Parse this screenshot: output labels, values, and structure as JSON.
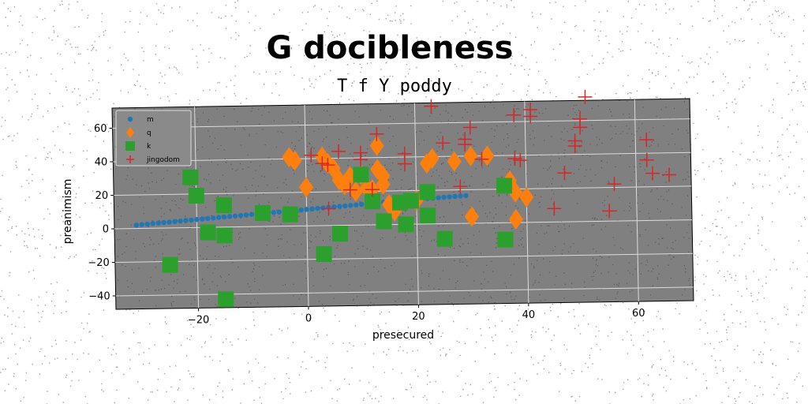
{
  "chart_data": {
    "type": "scatter",
    "title": "G docibleness",
    "subtitle": "T f Y poddy",
    "xlabel": "presecured",
    "ylabel": "preanimism",
    "xlim": [
      -35,
      70
    ],
    "ylim": [
      -48,
      72
    ],
    "xticks": [
      -20,
      0,
      20,
      40,
      60
    ],
    "yticks": [
      -40,
      -20,
      0,
      20,
      40,
      60
    ],
    "xtick_labels": [
      "−20",
      "0",
      "20",
      "40",
      "60"
    ],
    "ytick_labels": [
      "−40",
      "−20",
      "0",
      "20",
      "40",
      "60"
    ],
    "grid": true,
    "legend_position": "top-left",
    "background": "#808080",
    "series": [
      {
        "name": "m",
        "marker": "circle",
        "color": "#1f77b4",
        "points": [
          [
            -31,
            2
          ],
          [
            -30,
            2.3
          ],
          [
            -29,
            2.5
          ],
          [
            -28,
            2.8
          ],
          [
            -27,
            3
          ],
          [
            -26,
            3.3
          ],
          [
            -25,
            3.5
          ],
          [
            -24,
            3.8
          ],
          [
            -23,
            4
          ],
          [
            -22,
            4.3
          ],
          [
            -21,
            4.5
          ],
          [
            -20,
            4.8
          ],
          [
            -19,
            5
          ],
          [
            -18,
            5.3
          ],
          [
            -17,
            5.5
          ],
          [
            -16,
            5.8
          ],
          [
            -15,
            6
          ],
          [
            -14,
            6.3
          ],
          [
            -13,
            6.5
          ],
          [
            -12,
            6.8
          ],
          [
            -11,
            7
          ],
          [
            -10,
            7.3
          ],
          [
            -9,
            7.5
          ],
          [
            -8,
            7.8
          ],
          [
            -7,
            8
          ],
          [
            -6,
            8.3
          ],
          [
            -5,
            8.5
          ],
          [
            -4,
            8.8
          ],
          [
            -3,
            9
          ],
          [
            -2,
            9.3
          ],
          [
            -1,
            9.5
          ],
          [
            0,
            9.8
          ],
          [
            1,
            10
          ],
          [
            2,
            10.3
          ],
          [
            3,
            10.5
          ],
          [
            4,
            10.8
          ],
          [
            5,
            11
          ],
          [
            6,
            11.3
          ],
          [
            7,
            11.5
          ],
          [
            8,
            11.8
          ],
          [
            9,
            12
          ],
          [
            10,
            12.3
          ],
          [
            11,
            12.5
          ],
          [
            12,
            12.8
          ],
          [
            13,
            13
          ],
          [
            14,
            13.3
          ],
          [
            15,
            13.5
          ],
          [
            16,
            13.8
          ],
          [
            17,
            14
          ],
          [
            18,
            14.2
          ],
          [
            19,
            14.5
          ],
          [
            20,
            14.7
          ],
          [
            21,
            14.9
          ],
          [
            22,
            15.1
          ],
          [
            23,
            15.3
          ],
          [
            24,
            15.5
          ],
          [
            25,
            15.7
          ],
          [
            26,
            15.9
          ],
          [
            27,
            16.1
          ],
          [
            28,
            16.3
          ],
          [
            29,
            16.5
          ]
        ]
      },
      {
        "name": "q",
        "marker": "diamond",
        "color": "#ff7f0e",
        "points": [
          [
            -3,
            41
          ],
          [
            -2,
            39
          ],
          [
            0,
            23
          ],
          [
            3,
            41
          ],
          [
            4,
            37
          ],
          [
            5,
            34
          ],
          [
            6,
            27
          ],
          [
            7,
            24
          ],
          [
            8,
            29
          ],
          [
            9,
            20
          ],
          [
            10,
            30
          ],
          [
            11,
            22
          ],
          [
            12,
            21
          ],
          [
            13,
            47
          ],
          [
            13,
            33
          ],
          [
            14,
            29
          ],
          [
            14,
            24
          ],
          [
            15,
            12
          ],
          [
            16,
            8
          ],
          [
            20,
            14
          ],
          [
            22,
            36
          ],
          [
            23,
            39
          ],
          [
            27,
            37
          ],
          [
            30,
            4
          ],
          [
            30,
            40
          ],
          [
            33,
            40
          ],
          [
            37,
            25
          ],
          [
            38,
            18
          ],
          [
            38,
            2
          ],
          [
            40,
            15
          ]
        ]
      },
      {
        "name": "k",
        "marker": "square",
        "color": "#2ca02c",
        "points": [
          [
            -25,
            -22
          ],
          [
            -21,
            30
          ],
          [
            -20,
            19
          ],
          [
            -18,
            -3
          ],
          [
            -15,
            -5
          ],
          [
            -15,
            13
          ],
          [
            -15,
            -43
          ],
          [
            -8,
            8
          ],
          [
            -3,
            7
          ],
          [
            3,
            -17
          ],
          [
            6,
            -5
          ],
          [
            10,
            30
          ],
          [
            12,
            14
          ],
          [
            14,
            2
          ],
          [
            17,
            13
          ],
          [
            18,
            0
          ],
          [
            19,
            14
          ],
          [
            22,
            19
          ],
          [
            22,
            5
          ],
          [
            25,
            -9
          ],
          [
            36,
            22
          ],
          [
            36,
            -10
          ]
        ]
      },
      {
        "name": "jingodom",
        "marker": "plus",
        "color": "#d62728",
        "points": [
          [
            1,
            42
          ],
          [
            3,
            37
          ],
          [
            4,
            36
          ],
          [
            4,
            10
          ],
          [
            6,
            44
          ],
          [
            8,
            21
          ],
          [
            10,
            43
          ],
          [
            10,
            39
          ],
          [
            12,
            21
          ],
          [
            13,
            54
          ],
          [
            18,
            42
          ],
          [
            18,
            36
          ],
          [
            23,
            70
          ],
          [
            25,
            48
          ],
          [
            28,
            22
          ],
          [
            29,
            50
          ],
          [
            29,
            47
          ],
          [
            30,
            57
          ],
          [
            32,
            38
          ],
          [
            38,
            64
          ],
          [
            38,
            38
          ],
          [
            39,
            37
          ],
          [
            41,
            67
          ],
          [
            41,
            63
          ],
          [
            45,
            8
          ],
          [
            47,
            29
          ],
          [
            49,
            48
          ],
          [
            49,
            45
          ],
          [
            50,
            61
          ],
          [
            50,
            56
          ],
          [
            51,
            74
          ],
          [
            55,
            6
          ],
          [
            56,
            22
          ],
          [
            62,
            48
          ],
          [
            62,
            36
          ],
          [
            63,
            28
          ],
          [
            66,
            27
          ]
        ]
      }
    ]
  }
}
